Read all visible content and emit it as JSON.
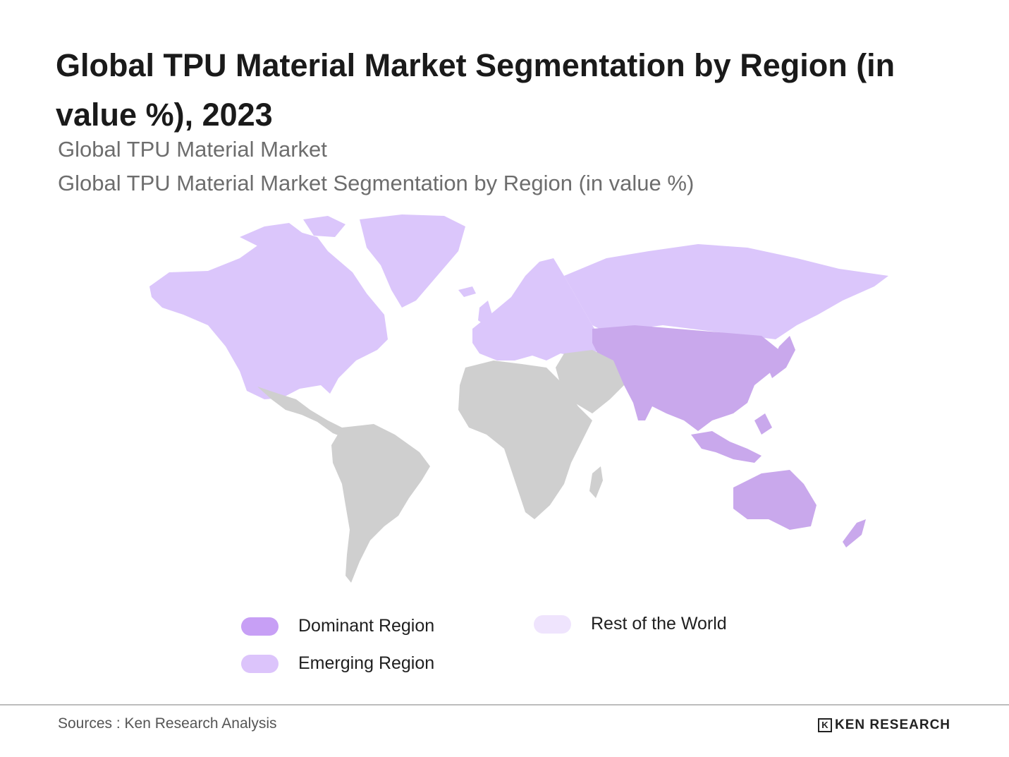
{
  "header": {
    "title": "Global TPU Material Market Segmentation by Region (in value %), 2023",
    "subtitle_1": "Global TPU Material Market",
    "subtitle_2": "Global TPU Material Market Segmentation by Region (in value %)"
  },
  "colors": {
    "dominant": "#c79ff5",
    "emerging": "#dcc4fb",
    "rest_of_world": "#efe4fd",
    "map_dominant_fill": "#c9a8ec",
    "map_emerging_fill": "#dbc6fb",
    "map_rest_fill": "#cfcfcf"
  },
  "legend": [
    {
      "label": "Dominant Region",
      "color": "#c79ff5"
    },
    {
      "label": "Emerging Region",
      "color": "#dcc4fb"
    },
    {
      "label": "Rest of the World",
      "color": "#efe4fd"
    }
  ],
  "regions": {
    "dominant": [
      "Asia-Pacific"
    ],
    "emerging": [
      "North America",
      "Europe"
    ],
    "rest_of_world": [
      "Latin America",
      "Middle East & Africa"
    ]
  },
  "footer": {
    "sources": "Sources : Ken Research Analysis",
    "brand_mark": "K",
    "brand_name": "KEN RESEARCH"
  }
}
